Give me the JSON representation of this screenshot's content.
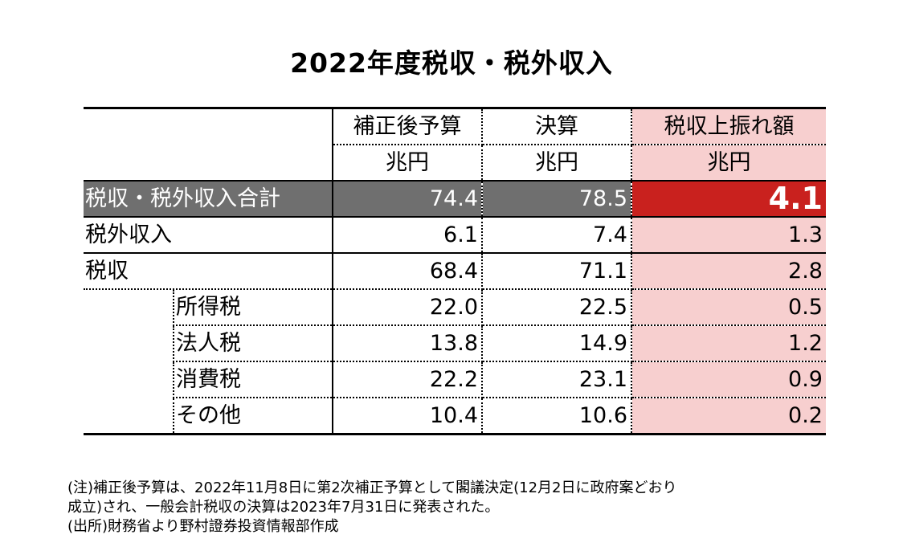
{
  "title": "2022年度税収・税外収入",
  "header": {
    "col_budget": "補正後予算",
    "col_settlement": "決算",
    "col_upside": "税収上振れ額",
    "unit": "兆円"
  },
  "total_row": {
    "label": "税収・税外収入合計",
    "budget": "74.4",
    "settlement": "78.5",
    "upside": "4.1"
  },
  "rows": [
    {
      "label": "税外収入",
      "budget": "6.1",
      "settlement": "7.4",
      "upside": "1.3"
    },
    {
      "label": "税収",
      "budget": "68.4",
      "settlement": "71.1",
      "upside": "2.8"
    }
  ],
  "sub_rows": [
    {
      "label": "所得税",
      "budget": "22.0",
      "settlement": "22.5",
      "upside": "0.5"
    },
    {
      "label": "法人税",
      "budget": "13.8",
      "settlement": "14.9",
      "upside": "1.2"
    },
    {
      "label": "消費税",
      "budget": "22.2",
      "settlement": "23.1",
      "upside": "0.9"
    },
    {
      "label": "その他",
      "budget": "10.4",
      "settlement": "10.6",
      "upside": "0.2"
    }
  ],
  "notes": {
    "line1": "(注)補正後予算は、2022年11月8日に第2次補正予算として閣議決定(12月2日に政府案どおり",
    "line2": "成立)され、一般会計税収の決算は2023年7月31日に発表された。",
    "line3": "(出所)財務省より野村證券投資情報部作成"
  },
  "colors": {
    "total_bg": "#6f6f6f",
    "highlight_red": "#c9211e",
    "upside_col_bg": "#f7cfcf"
  }
}
